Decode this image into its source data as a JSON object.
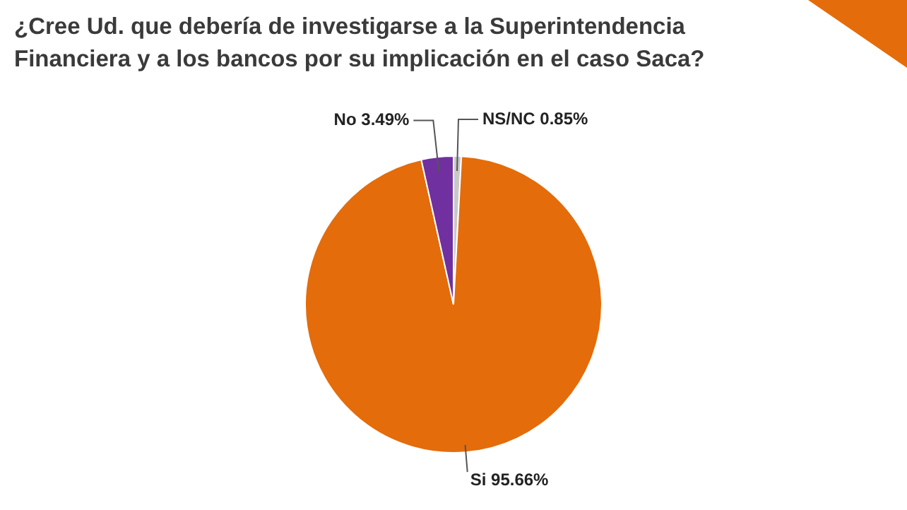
{
  "chart_data": {
    "type": "pie",
    "title": "¿Cree Ud. que debería de investigarse a la Superintendencia Financiera y a los bancos por su implicación en el caso Saca?",
    "categories": [
      "NS/NC",
      "Si",
      "No"
    ],
    "values": [
      0.85,
      95.66,
      3.49
    ],
    "colors": [
      "#c8c8c8",
      "#e46c0a",
      "#7030a0"
    ],
    "value_labels": [
      "0.85%",
      "95.66%",
      "3.49%"
    ],
    "legend": false
  }
}
